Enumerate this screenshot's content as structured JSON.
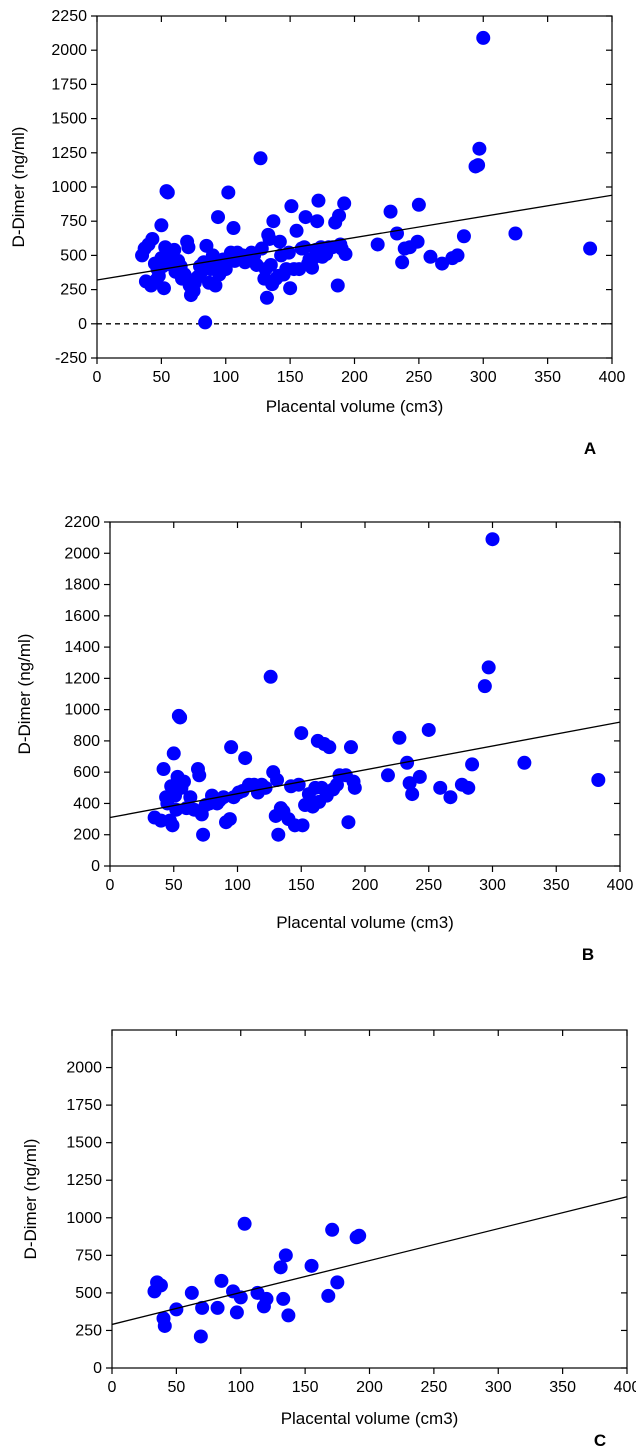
{
  "chart_data": [
    {
      "type": "scatter",
      "panel_label": "A",
      "xlabel": "Placental volume (cm3)",
      "ylabel": "D-Dimer (ng/ml)",
      "xlim": [
        0,
        400
      ],
      "ylim": [
        -250,
        2250
      ],
      "x_ticks": [
        0,
        50,
        100,
        150,
        200,
        250,
        300,
        350,
        400
      ],
      "y_ticks": [
        -250,
        0,
        250,
        500,
        750,
        1000,
        1250,
        1500,
        1750,
        2000,
        2250
      ],
      "grid": false,
      "zero_line": true,
      "marker_color": "#0000ff",
      "regression_line": {
        "x": [
          0,
          400
        ],
        "y": [
          320,
          940
        ]
      },
      "points": [
        [
          35,
          500
        ],
        [
          37,
          550
        ],
        [
          38,
          310
        ],
        [
          40,
          580
        ],
        [
          42,
          280
        ],
        [
          43,
          620
        ],
        [
          45,
          440
        ],
        [
          46,
          320
        ],
        [
          47,
          400
        ],
        [
          48,
          350
        ],
        [
          50,
          480
        ],
        [
          50,
          720
        ],
        [
          51,
          420
        ],
        [
          52,
          260
        ],
        [
          53,
          560
        ],
        [
          54,
          970
        ],
        [
          55,
          960
        ],
        [
          56,
          500
        ],
        [
          58,
          430
        ],
        [
          60,
          540
        ],
        [
          61,
          380
        ],
        [
          63,
          460
        ],
        [
          65,
          420
        ],
        [
          66,
          330
        ],
        [
          68,
          360
        ],
        [
          70,
          600
        ],
        [
          71,
          560
        ],
        [
          72,
          280
        ],
        [
          73,
          210
        ],
        [
          75,
          240
        ],
        [
          76,
          300
        ],
        [
          78,
          340
        ],
        [
          80,
          420
        ],
        [
          81,
          380
        ],
        [
          83,
          450
        ],
        [
          84,
          10
        ],
        [
          85,
          570
        ],
        [
          87,
          300
        ],
        [
          88,
          400
        ],
        [
          89,
          460
        ],
        [
          90,
          500
        ],
        [
          92,
          280
        ],
        [
          93,
          420
        ],
        [
          94,
          780
        ],
        [
          95,
          360
        ],
        [
          97,
          440
        ],
        [
          98,
          470
        ],
        [
          100,
          400
        ],
        [
          101,
          450
        ],
        [
          102,
          960
        ],
        [
          104,
          520
        ],
        [
          106,
          700
        ],
        [
          107,
          460
        ],
        [
          109,
          520
        ],
        [
          111,
          490
        ],
        [
          113,
          500
        ],
        [
          115,
          450
        ],
        [
          118,
          480
        ],
        [
          120,
          520
        ],
        [
          122,
          500
        ],
        [
          124,
          430
        ],
        [
          127,
          1210
        ],
        [
          128,
          550
        ],
        [
          130,
          330
        ],
        [
          131,
          400
        ],
        [
          132,
          190
        ],
        [
          133,
          650
        ],
        [
          134,
          620
        ],
        [
          135,
          430
        ],
        [
          136,
          290
        ],
        [
          137,
          750
        ],
        [
          139,
          330
        ],
        [
          141,
          350
        ],
        [
          142,
          600
        ],
        [
          143,
          500
        ],
        [
          145,
          360
        ],
        [
          147,
          400
        ],
        [
          149,
          520
        ],
        [
          150,
          260
        ],
        [
          151,
          860
        ],
        [
          153,
          400
        ],
        [
          155,
          680
        ],
        [
          157,
          400
        ],
        [
          159,
          550
        ],
        [
          161,
          560
        ],
        [
          162,
          780
        ],
        [
          164,
          440
        ],
        [
          165,
          470
        ],
        [
          167,
          410
        ],
        [
          168,
          480
        ],
        [
          170,
          540
        ],
        [
          171,
          750
        ],
        [
          172,
          900
        ],
        [
          174,
          560
        ],
        [
          175,
          490
        ],
        [
          177,
          550
        ],
        [
          178,
          510
        ],
        [
          180,
          560
        ],
        [
          183,
          560
        ],
        [
          185,
          740
        ],
        [
          187,
          280
        ],
        [
          188,
          790
        ],
        [
          189,
          580
        ],
        [
          190,
          550
        ],
        [
          192,
          880
        ],
        [
          193,
          510
        ],
        [
          218,
          580
        ],
        [
          228,
          820
        ],
        [
          233,
          660
        ],
        [
          237,
          450
        ],
        [
          239,
          550
        ],
        [
          243,
          560
        ],
        [
          249,
          600
        ],
        [
          250,
          870
        ],
        [
          259,
          490
        ],
        [
          268,
          440
        ],
        [
          276,
          480
        ],
        [
          280,
          500
        ],
        [
          285,
          640
        ],
        [
          294,
          1150
        ],
        [
          296,
          1160
        ],
        [
          297,
          1280
        ],
        [
          300,
          2090
        ],
        [
          325,
          660
        ],
        [
          383,
          550
        ]
      ]
    },
    {
      "type": "scatter",
      "panel_label": "B",
      "xlabel": "Placental volume (cm3)",
      "ylabel": "D-Dimer (ng/ml)",
      "xlim": [
        0,
        400
      ],
      "ylim": [
        0,
        2200
      ],
      "x_ticks": [
        0,
        50,
        100,
        150,
        200,
        250,
        300,
        350,
        400
      ],
      "y_ticks": [
        0,
        200,
        400,
        600,
        800,
        1000,
        1200,
        1400,
        1600,
        1800,
        2000,
        2200
      ],
      "grid": false,
      "zero_line": false,
      "marker_color": "#0000ff",
      "regression_line": {
        "x": [
          0,
          400
        ],
        "y": [
          310,
          920
        ]
      },
      "points": [
        [
          35,
          310
        ],
        [
          40,
          290
        ],
        [
          42,
          620
        ],
        [
          44,
          440
        ],
        [
          45,
          400
        ],
        [
          47,
          290
        ],
        [
          48,
          510
        ],
        [
          49,
          260
        ],
        [
          50,
          720
        ],
        [
          51,
          450
        ],
        [
          52,
          360
        ],
        [
          53,
          570
        ],
        [
          54,
          960
        ],
        [
          55,
          950
        ],
        [
          56,
          500
        ],
        [
          58,
          540
        ],
        [
          60,
          370
        ],
        [
          63,
          440
        ],
        [
          66,
          360
        ],
        [
          69,
          620
        ],
        [
          70,
          580
        ],
        [
          72,
          330
        ],
        [
          73,
          200
        ],
        [
          75,
          390
        ],
        [
          78,
          400
        ],
        [
          80,
          450
        ],
        [
          84,
          400
        ],
        [
          86,
          420
        ],
        [
          89,
          440
        ],
        [
          91,
          280
        ],
        [
          94,
          300
        ],
        [
          95,
          760
        ],
        [
          97,
          440
        ],
        [
          101,
          470
        ],
        [
          104,
          480
        ],
        [
          106,
          690
        ],
        [
          109,
          520
        ],
        [
          113,
          520
        ],
        [
          116,
          470
        ],
        [
          119,
          520
        ],
        [
          122,
          500
        ],
        [
          126,
          1210
        ],
        [
          128,
          600
        ],
        [
          130,
          320
        ],
        [
          131,
          550
        ],
        [
          132,
          200
        ],
        [
          134,
          370
        ],
        [
          136,
          350
        ],
        [
          140,
          300
        ],
        [
          142,
          510
        ],
        [
          145,
          260
        ],
        [
          148,
          520
        ],
        [
          150,
          850
        ],
        [
          151,
          260
        ],
        [
          153,
          390
        ],
        [
          156,
          460
        ],
        [
          159,
          380
        ],
        [
          161,
          500
        ],
        [
          163,
          800
        ],
        [
          164,
          410
        ],
        [
          166,
          500
        ],
        [
          168,
          780
        ],
        [
          170,
          450
        ],
        [
          172,
          760
        ],
        [
          175,
          490
        ],
        [
          178,
          520
        ],
        [
          180,
          580
        ],
        [
          185,
          580
        ],
        [
          187,
          280
        ],
        [
          189,
          760
        ],
        [
          191,
          540
        ],
        [
          192,
          500
        ],
        [
          218,
          580
        ],
        [
          227,
          820
        ],
        [
          233,
          660
        ],
        [
          235,
          530
        ],
        [
          237,
          460
        ],
        [
          243,
          570
        ],
        [
          250,
          870
        ],
        [
          259,
          500
        ],
        [
          267,
          440
        ],
        [
          276,
          520
        ],
        [
          281,
          500
        ],
        [
          284,
          650
        ],
        [
          294,
          1150
        ],
        [
          297,
          1270
        ],
        [
          300,
          2090
        ],
        [
          325,
          660
        ],
        [
          383,
          550
        ]
      ]
    },
    {
      "type": "scatter",
      "panel_label": "C",
      "xlabel": "Placental volume (cm3)",
      "ylabel": "D-Dimer (ng/ml)",
      "xlim": [
        0,
        400
      ],
      "ylim": [
        0,
        2250
      ],
      "x_ticks": [
        0,
        50,
        100,
        150,
        200,
        250,
        300,
        350,
        400
      ],
      "y_ticks": [
        0,
        250,
        500,
        750,
        1000,
        1250,
        1500,
        1750,
        2000
      ],
      "grid": false,
      "zero_line": false,
      "marker_color": "#0000ff",
      "regression_line": {
        "x": [
          0,
          400
        ],
        "y": [
          290,
          1140
        ]
      },
      "points": [
        [
          33,
          510
        ],
        [
          35,
          570
        ],
        [
          38,
          550
        ],
        [
          40,
          330
        ],
        [
          41,
          280
        ],
        [
          50,
          390
        ],
        [
          62,
          500
        ],
        [
          69,
          210
        ],
        [
          70,
          400
        ],
        [
          82,
          400
        ],
        [
          85,
          580
        ],
        [
          94,
          510
        ],
        [
          97,
          370
        ],
        [
          100,
          470
        ],
        [
          103,
          960
        ],
        [
          113,
          500
        ],
        [
          118,
          410
        ],
        [
          120,
          460
        ],
        [
          131,
          670
        ],
        [
          133,
          460
        ],
        [
          135,
          750
        ],
        [
          137,
          350
        ],
        [
          155,
          680
        ],
        [
          168,
          480
        ],
        [
          171,
          920
        ],
        [
          175,
          570
        ],
        [
          190,
          870
        ],
        [
          192,
          880
        ]
      ]
    }
  ]
}
